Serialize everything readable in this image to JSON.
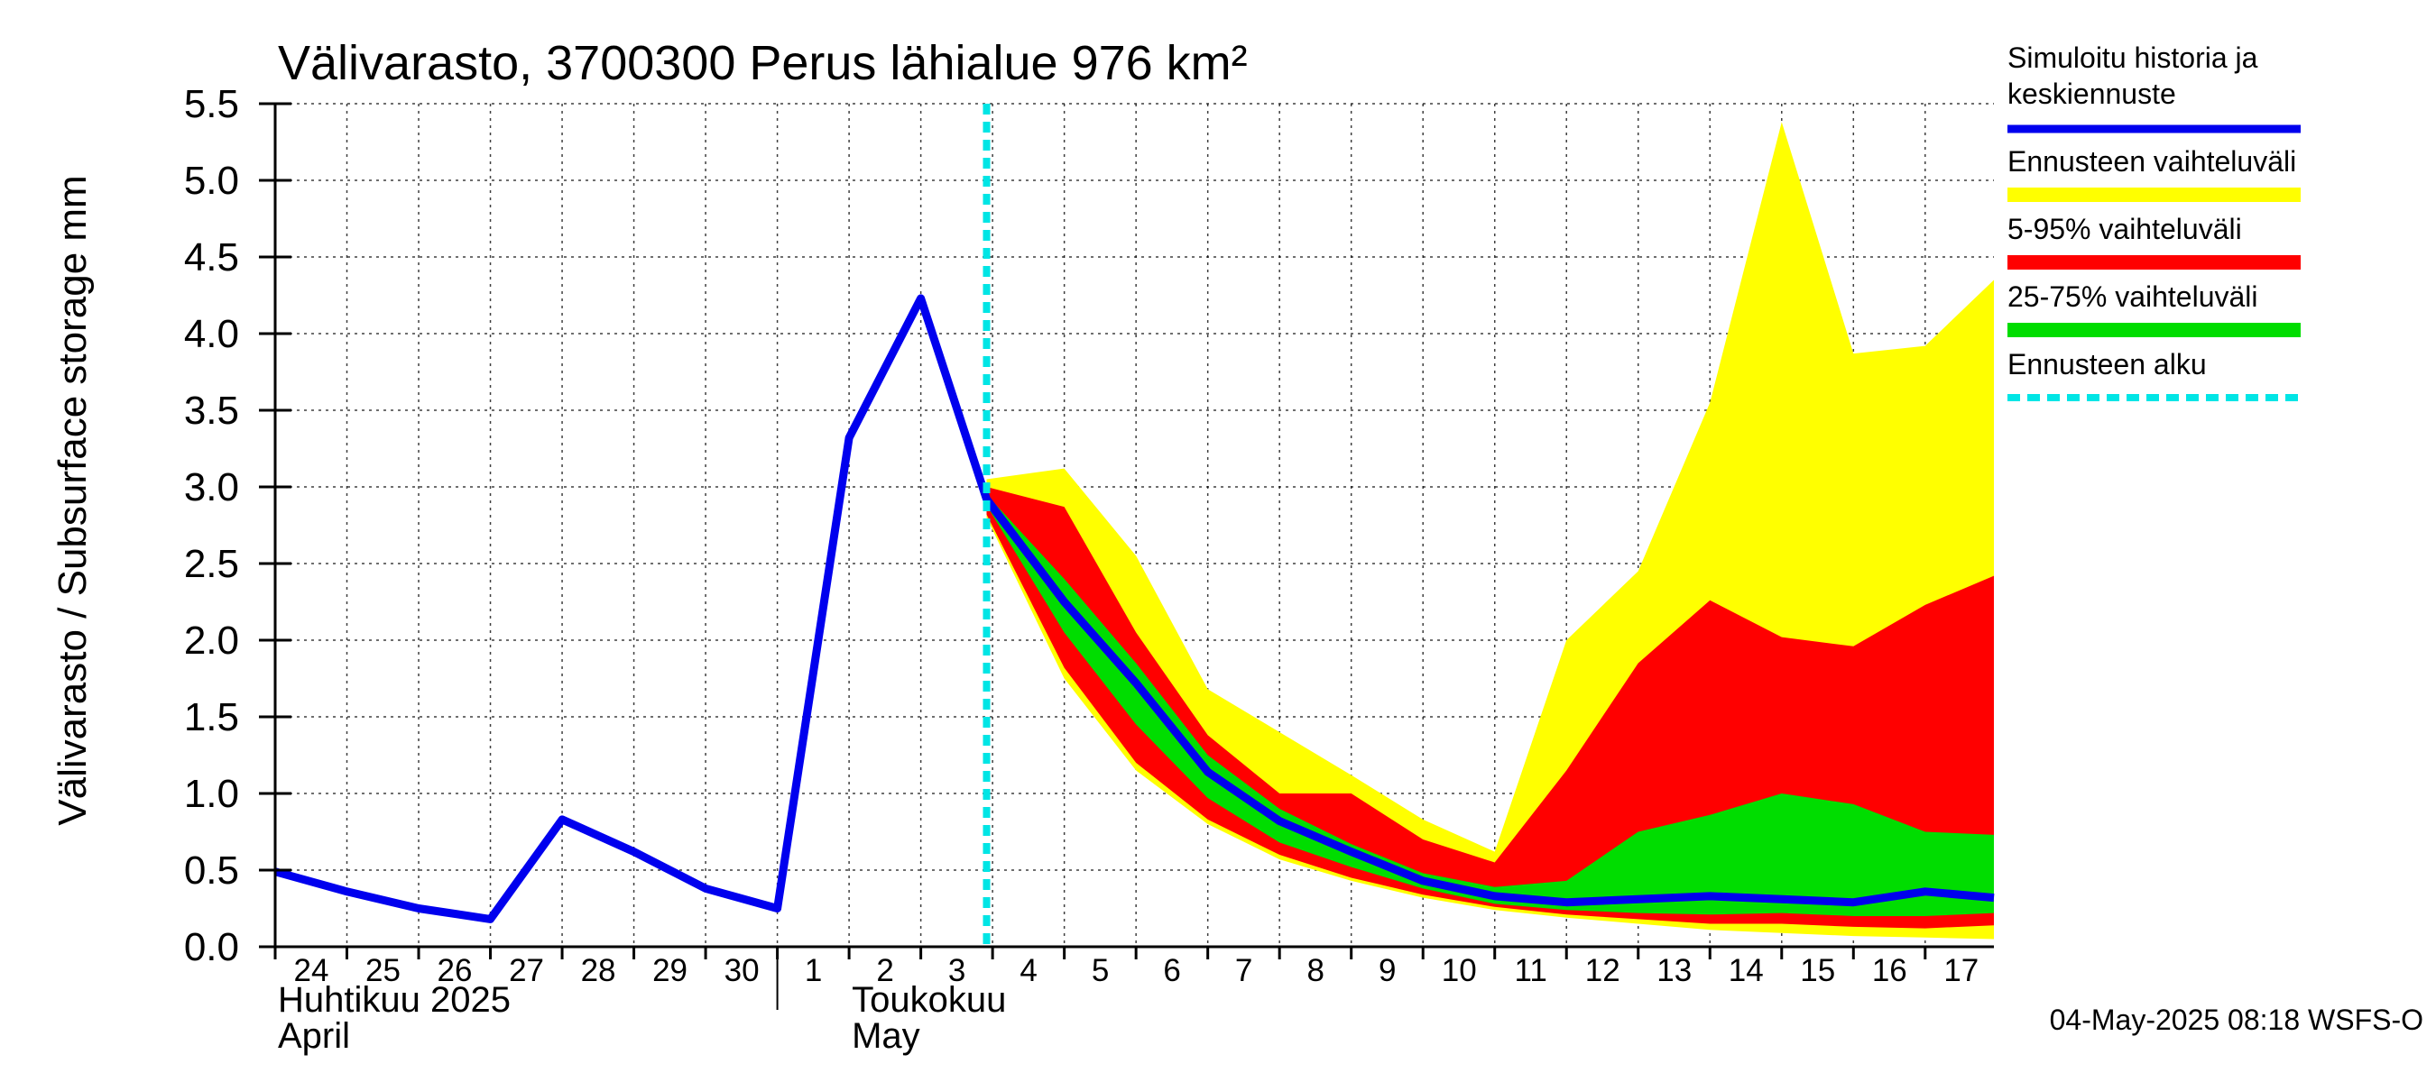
{
  "chart_data": {
    "type": "area",
    "title": "Välivarasto, 3700300 Perus lähialue 976 km²",
    "ylabel": "Välivarasto / Subsurface storage  mm",
    "ylim": [
      0,
      5.5
    ],
    "yticks": [
      "0.0",
      "0.5",
      "1.0",
      "1.5",
      "2.0",
      "2.5",
      "3.0",
      "3.5",
      "4.0",
      "4.5",
      "5.0",
      "5.5"
    ],
    "xlim": [
      "2025-04-24",
      "2025-05-17T23:00"
    ],
    "day_labels": [
      "24",
      "25",
      "26",
      "27",
      "28",
      "29",
      "30",
      "1",
      "2",
      "3",
      "4",
      "5",
      "6",
      "7",
      "8",
      "9",
      "10",
      "11",
      "12",
      "13",
      "14",
      "15",
      "16",
      "17"
    ],
    "month_labels": [
      {
        "line1": "Huhtikuu  2025",
        "line2": "April",
        "date": "2025-04-24"
      },
      {
        "line1": "Toukokuu",
        "line2": "May",
        "date": "2025-05-02"
      }
    ],
    "forecast_start": "2025-05-03T22:00",
    "grid": true,
    "legend_position": "right",
    "colors": {
      "history": "#0000ee",
      "range_full": "#ffff00",
      "range_5_95": "#ff0000",
      "range_25_75": "#00dd00",
      "forecast_start": "#00e5e5"
    },
    "series": [
      {
        "name": "Simuloitu historia ja keskiennuste",
        "type": "line",
        "points": [
          [
            "2025-04-24",
            0.49
          ],
          [
            "2025-04-25",
            0.36
          ],
          [
            "2025-04-26",
            0.25
          ],
          [
            "2025-04-27",
            0.18
          ],
          [
            "2025-04-28",
            0.83
          ],
          [
            "2025-04-29",
            0.62
          ],
          [
            "2025-04-30",
            0.38
          ],
          [
            "2025-05-01",
            0.25
          ],
          [
            "2025-05-02",
            3.32
          ],
          [
            "2025-05-03",
            4.23
          ],
          [
            "2025-05-03T22:00",
            2.92
          ],
          [
            "2025-05-05",
            2.25
          ],
          [
            "2025-05-06",
            1.72
          ],
          [
            "2025-05-07",
            1.14
          ],
          [
            "2025-05-08",
            0.82
          ],
          [
            "2025-05-09",
            0.62
          ],
          [
            "2025-05-10",
            0.43
          ],
          [
            "2025-05-11",
            0.33
          ],
          [
            "2025-05-12",
            0.29
          ],
          [
            "2025-05-13",
            0.31
          ],
          [
            "2025-05-14",
            0.33
          ],
          [
            "2025-05-15",
            0.31
          ],
          [
            "2025-05-16",
            0.29
          ],
          [
            "2025-05-17",
            0.36
          ],
          [
            "2025-05-17T23:00",
            0.32
          ]
        ]
      },
      {
        "name": "Ennusteen vaihteluväli",
        "type": "band",
        "dates": [
          "2025-05-03T22:00",
          "2025-05-05",
          "2025-05-06",
          "2025-05-07",
          "2025-05-08",
          "2025-05-09",
          "2025-05-10",
          "2025-05-11",
          "2025-05-12",
          "2025-05-13",
          "2025-05-14",
          "2025-05-15",
          "2025-05-16",
          "2025-05-17",
          "2025-05-17T23:00"
        ],
        "upper": [
          3.05,
          3.12,
          2.55,
          1.68,
          1.4,
          1.12,
          0.83,
          0.62,
          2.0,
          2.45,
          3.55,
          5.38,
          3.87,
          3.92,
          4.35
        ],
        "lower": [
          2.8,
          1.75,
          1.15,
          0.8,
          0.57,
          0.43,
          0.32,
          0.24,
          0.19,
          0.15,
          0.11,
          0.09,
          0.07,
          0.06,
          0.05
        ]
      },
      {
        "name": "5-95% vaihteluväli",
        "type": "band",
        "dates": [
          "2025-05-03T22:00",
          "2025-05-05",
          "2025-05-06",
          "2025-05-07",
          "2025-05-08",
          "2025-05-09",
          "2025-05-10",
          "2025-05-11",
          "2025-05-12",
          "2025-05-13",
          "2025-05-14",
          "2025-05-15",
          "2025-05-16",
          "2025-05-17",
          "2025-05-17T23:00"
        ],
        "upper": [
          3.0,
          2.87,
          2.05,
          1.38,
          1.0,
          1.0,
          0.7,
          0.55,
          1.15,
          1.85,
          2.26,
          2.02,
          1.96,
          2.23,
          2.42
        ],
        "lower": [
          2.82,
          1.82,
          1.2,
          0.83,
          0.6,
          0.45,
          0.34,
          0.26,
          0.21,
          0.18,
          0.15,
          0.15,
          0.13,
          0.12,
          0.14
        ]
      },
      {
        "name": "25-75% vaihteluväli",
        "type": "band",
        "dates": [
          "2025-05-03T22:00",
          "2025-05-05",
          "2025-05-06",
          "2025-05-07",
          "2025-05-08",
          "2025-05-09",
          "2025-05-10",
          "2025-05-11",
          "2025-05-12",
          "2025-05-13",
          "2025-05-14",
          "2025-05-15",
          "2025-05-16",
          "2025-05-17",
          "2025-05-17T23:00"
        ],
        "upper": [
          2.95,
          2.4,
          1.85,
          1.25,
          0.9,
          0.67,
          0.48,
          0.39,
          0.43,
          0.75,
          0.86,
          1.0,
          0.93,
          0.75,
          0.73
        ],
        "lower": [
          2.88,
          2.05,
          1.45,
          0.97,
          0.68,
          0.52,
          0.38,
          0.28,
          0.24,
          0.22,
          0.21,
          0.22,
          0.2,
          0.2,
          0.22
        ]
      },
      {
        "name": "Ennusteen alku",
        "type": "vline"
      }
    ],
    "footer": "04-May-2025 08:18 WSFS-O"
  }
}
